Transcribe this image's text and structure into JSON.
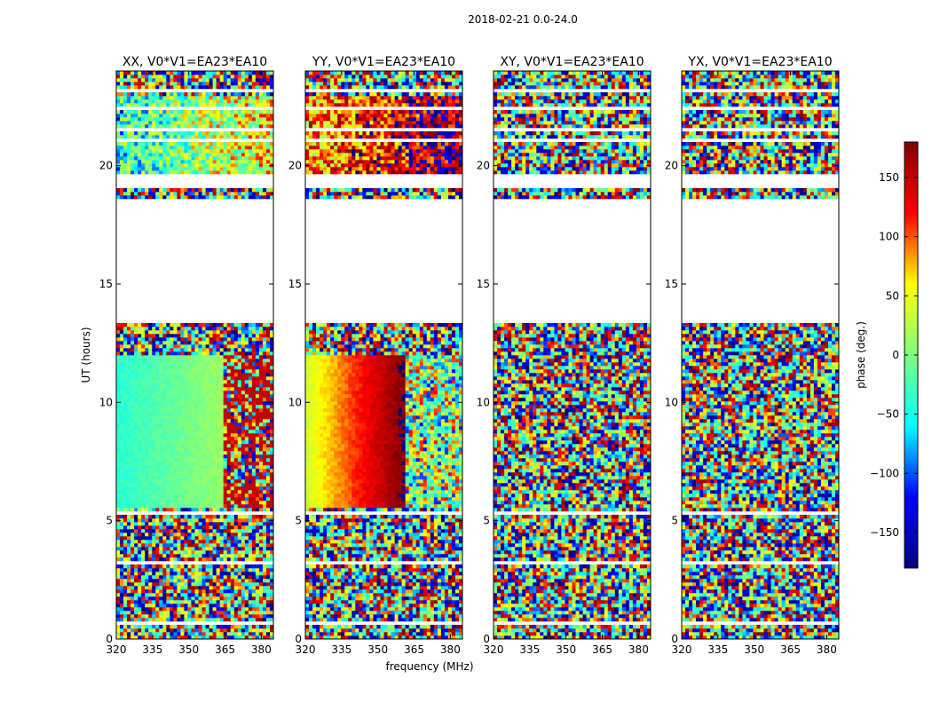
{
  "figure": {
    "suptitle": "2018-02-21 0.0-24.0"
  },
  "colorbar": {
    "label": "phase (deg.)",
    "range": [
      -180,
      180
    ],
    "ticks": [
      -150,
      -100,
      -50,
      0,
      50,
      100,
      150
    ],
    "tick_labels": [
      "−150",
      "−100",
      "−50",
      "0",
      "50",
      "100",
      "150"
    ],
    "colormap": "jet",
    "colors": [
      "#00007f",
      "#0000ff",
      "#00ffff",
      "#7fff7f",
      "#ffff00",
      "#ff0000",
      "#7f0000"
    ]
  },
  "chart_data": [
    {
      "type": "heatmap",
      "title": "XX, V0*V1=EA23*EA10",
      "xlabel": "",
      "ylabel": "UT (hours)",
      "xlim": [
        320,
        385
      ],
      "ylim": [
        0,
        24
      ],
      "xticks": [
        320,
        335,
        350,
        365,
        380
      ],
      "yticks": [
        0,
        5,
        10,
        15,
        20
      ],
      "value": "phase (deg.)",
      "pattern": "smooth phase gradient"
    },
    {
      "type": "heatmap",
      "title": "YY, V0*V1=EA23*EA10",
      "xlabel": "frequency (MHz)",
      "ylabel": "",
      "xlim": [
        320,
        385
      ],
      "ylim": [
        0,
        24
      ],
      "xticks": [
        320,
        335,
        350,
        365,
        380
      ],
      "yticks": [
        0,
        5,
        10,
        15,
        20
      ],
      "value": "phase (deg.)",
      "pattern": "smooth phase gradient"
    },
    {
      "type": "heatmap",
      "title": "XY, V0*V1=EA23*EA10",
      "xlabel": "",
      "ylabel": "",
      "xlim": [
        320,
        385
      ],
      "ylim": [
        0,
        24
      ],
      "xticks": [
        320,
        335,
        350,
        365,
        380
      ],
      "yticks": [
        0,
        5,
        10,
        15,
        20
      ],
      "value": "phase (deg.)",
      "pattern": "noise"
    },
    {
      "type": "heatmap",
      "title": "YX, V0*V1=EA23*EA10",
      "xlabel": "",
      "ylabel": "",
      "xlim": [
        320,
        385
      ],
      "ylim": [
        0,
        24
      ],
      "xticks": [
        320,
        335,
        350,
        365,
        380
      ],
      "yticks": [
        0,
        5,
        10,
        15,
        20
      ],
      "value": "phase (deg.)",
      "pattern": "noise"
    }
  ],
  "flagged_intervals_hours": [
    [
      13.3,
      18.6
    ],
    [
      19.0,
      19.6
    ],
    [
      23.1,
      23.3
    ],
    [
      21.5,
      21.65
    ],
    [
      21.0,
      21.15
    ],
    [
      22.4,
      22.55
    ],
    [
      5.25,
      5.4
    ],
    [
      0.65,
      0.75
    ],
    [
      1.45,
      1.5
    ],
    [
      3.2,
      3.27
    ]
  ]
}
